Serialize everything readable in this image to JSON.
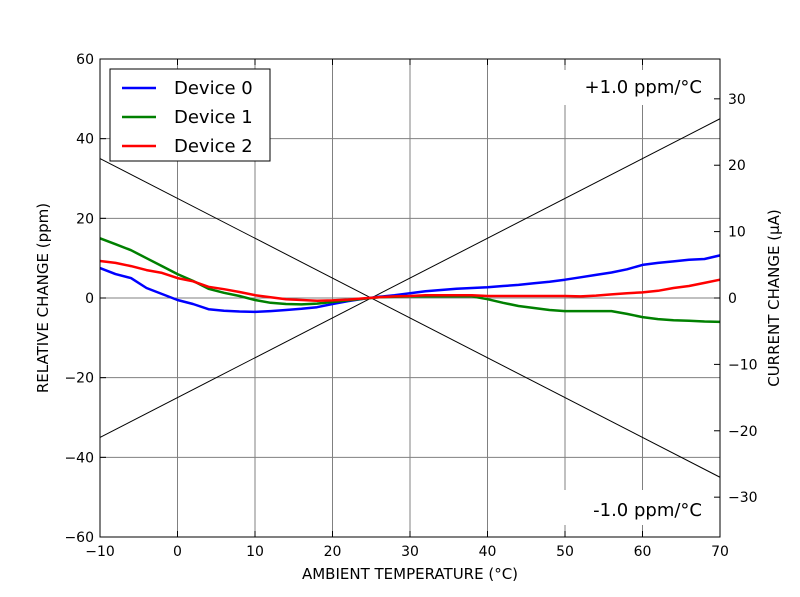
{
  "chart_data": {
    "type": "line",
    "xlabel": "AMBIENT TEMPERATURE (°C)",
    "ylabel": "RELATIVE CHANGE (ppm)",
    "y2label": "CURRENT CHANGE (µA)",
    "xlim": [
      -10,
      70
    ],
    "ylim": [
      -60,
      60
    ],
    "y2lim": [
      -36,
      36
    ],
    "xticks": [
      -10,
      0,
      10,
      20,
      30,
      40,
      50,
      60,
      70
    ],
    "yticks": [
      -60,
      -40,
      -20,
      0,
      20,
      40,
      60
    ],
    "y2ticks": [
      -30,
      -20,
      -10,
      0,
      10,
      20,
      30
    ],
    "xtick_labels": [
      "−10",
      "0",
      "10",
      "20",
      "30",
      "40",
      "50",
      "60",
      "70"
    ],
    "ytick_labels": [
      "−60",
      "−40",
      "−20",
      "0",
      "20",
      "40",
      "60"
    ],
    "y2tick_labels": [
      "−30",
      "−20",
      "−10",
      "0",
      "10",
      "20",
      "30"
    ],
    "grid": true,
    "legend": "upper-left",
    "x": [
      -10,
      -8,
      -6,
      -4,
      -2,
      0,
      2,
      4,
      6,
      8,
      10,
      12,
      14,
      16,
      18,
      20,
      22,
      24,
      26,
      28,
      30,
      32,
      34,
      36,
      38,
      40,
      42,
      44,
      46,
      48,
      50,
      52,
      54,
      56,
      58,
      60,
      62,
      64,
      66,
      68,
      70
    ],
    "series": [
      {
        "name": "Device 0",
        "color": "#0000ff",
        "values": [
          7.5,
          6,
          5,
          2.5,
          1,
          -0.5,
          -1.5,
          -2.8,
          -3.2,
          -3.4,
          -3.5,
          -3.3,
          -3,
          -2.7,
          -2.3,
          -1.5,
          -0.8,
          -0.2,
          0.3,
          0.7,
          1.2,
          1.7,
          2,
          2.3,
          2.5,
          2.7,
          3,
          3.3,
          3.7,
          4.1,
          4.6,
          5.2,
          5.8,
          6.4,
          7.2,
          8.3,
          8.8,
          9.2,
          9.6,
          9.8,
          10.7
        ]
      },
      {
        "name": "Device 1",
        "color": "#008000",
        "values": [
          15,
          13.5,
          12,
          10,
          8,
          6,
          4.3,
          2.3,
          1.3,
          0.5,
          -0.5,
          -1.2,
          -1.5,
          -1.6,
          -1.4,
          -1,
          -0.6,
          -0.2,
          0.2,
          0.3,
          0.4,
          0.4,
          0.4,
          0.4,
          0.4,
          -0.3,
          -1.2,
          -2,
          -2.5,
          -3,
          -3.3,
          -3.3,
          -3.3,
          -3.3,
          -4,
          -4.8,
          -5.3,
          -5.6,
          -5.7,
          -5.9,
          -6
        ]
      },
      {
        "name": "Device 2",
        "color": "#ff0000",
        "values": [
          9.3,
          8.8,
          8,
          7,
          6.3,
          5,
          4.2,
          2.8,
          2.2,
          1.5,
          0.7,
          0.2,
          -0.3,
          -0.5,
          -0.7,
          -0.6,
          -0.4,
          -0.1,
          0.2,
          0.4,
          0.5,
          0.7,
          0.7,
          0.7,
          0.7,
          0.5,
          0.5,
          0.5,
          0.5,
          0.5,
          0.5,
          0.4,
          0.6,
          0.9,
          1.2,
          1.4,
          1.8,
          2.5,
          3,
          3.8,
          4.6
        ]
      }
    ],
    "reference_lines": [
      {
        "label": "+1.0 ppm/°C",
        "slope": 1.0,
        "x0": 25,
        "color": "#000000"
      },
      {
        "label": "-1.0 ppm/°C",
        "slope": -1.0,
        "x0": 25,
        "color": "#000000"
      }
    ]
  }
}
